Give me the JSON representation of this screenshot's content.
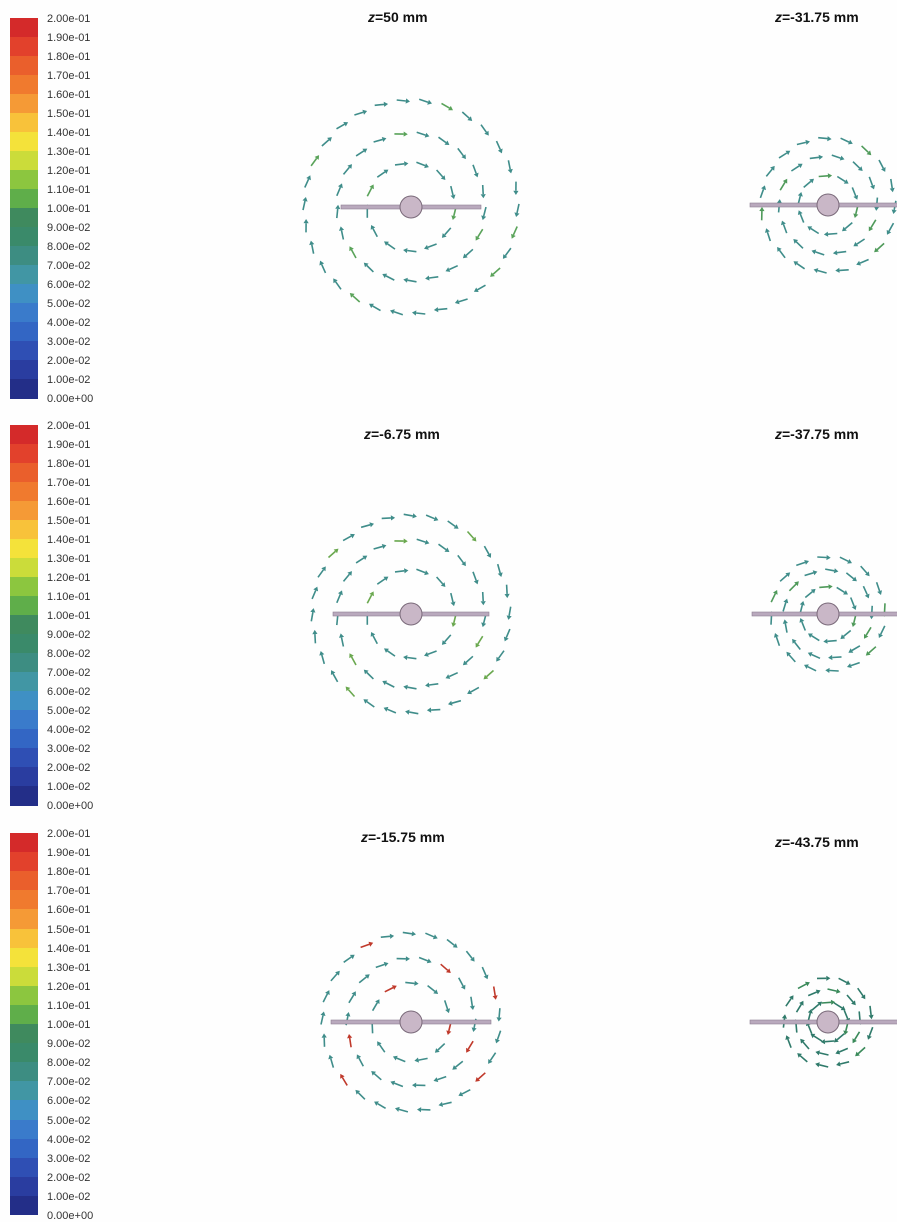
{
  "legend": {
    "labels": [
      "2.00e-01",
      "1.90e-01",
      "1.80e-01",
      "1.70e-01",
      "1.60e-01",
      "1.50e-01",
      "1.40e-01",
      "1.30e-01",
      "1.20e-01",
      "1.10e-01",
      "1.00e-01",
      "9.00e-02",
      "8.00e-02",
      "7.00e-02",
      "6.00e-02",
      "5.00e-02",
      "4.00e-02",
      "3.00e-02",
      "2.00e-02",
      "1.00e-02",
      "0.00e+00"
    ],
    "colors": [
      "#d42a2a",
      "#e2412c",
      "#ea5f2c",
      "#f07a2e",
      "#f59a36",
      "#f8c23a",
      "#f4e23a",
      "#cbdc3a",
      "#8cc63f",
      "#5fae4a",
      "#3f8a5e",
      "#3a8a6a",
      "#3d8d82",
      "#4196a4",
      "#3f90c4",
      "#3a7bcb",
      "#3366c4",
      "#2f4fb4",
      "#2a3da0",
      "#232e88"
    ]
  },
  "panels": [
    {
      "z_symbol": "z",
      "z_text": "=50 mm",
      "rings": [
        45,
        75,
        108
      ],
      "arrow_color": "#3f8d8a",
      "accent": "#5aa35a"
    },
    {
      "z_symbol": "z",
      "z_text": "=-31.75 mm",
      "rings": [
        30,
        50,
        68
      ],
      "arrow_color": "#3f8d8a",
      "accent": "#4f9a5a"
    },
    {
      "z_symbol": "z",
      "z_text": "=-6.75 mm",
      "rings": [
        45,
        75,
        100
      ],
      "arrow_color": "#3f8d8a",
      "accent": "#6aa84f"
    },
    {
      "z_symbol": "z",
      "z_text": "=-37.75 mm",
      "rings": [
        28,
        45,
        58
      ],
      "arrow_color": "#3f8d8a",
      "accent": "#4f9a5a"
    },
    {
      "z_symbol": "z",
      "z_text": "=-15.75 mm",
      "rings": [
        40,
        65,
        90
      ],
      "arrow_color": "#3f8d8a",
      "accent": "#c0392b"
    },
    {
      "z_symbol": "z",
      "z_text": "=-43.75 mm",
      "rings": [
        20,
        33,
        45
      ],
      "arrow_color": "#2f7a6a",
      "accent": "#3a8a5a"
    }
  ]
}
